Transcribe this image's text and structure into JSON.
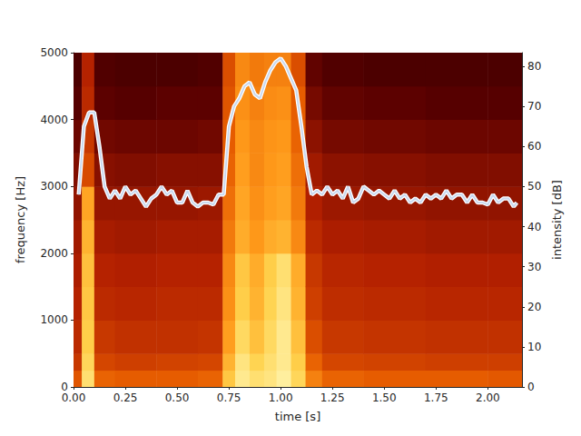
{
  "chart_data": {
    "type": "spectrogram",
    "xlabel": "time [s]",
    "ylabel": "frequency [Hz]",
    "y2label": "intensity [dB]",
    "xlim": [
      0,
      2.165
    ],
    "xticks": [
      {
        "value": 0,
        "label": "0.00"
      },
      {
        "value": 0.25,
        "label": "0.25"
      },
      {
        "value": 0.5,
        "label": "0.50"
      },
      {
        "value": 0.75,
        "label": "0.75"
      },
      {
        "value": 1,
        "label": "1.00"
      },
      {
        "value": 1.25,
        "label": "1.25"
      },
      {
        "value": 1.5,
        "label": "1.50"
      },
      {
        "value": 1.75,
        "label": "1.75"
      },
      {
        "value": 2,
        "label": "2.00"
      }
    ],
    "ylim": [
      0,
      5000
    ],
    "yticks": [
      0,
      1000,
      2000,
      3000,
      4000,
      5000
    ],
    "y2lim": [
      0,
      83.4
    ],
    "y2ticks": [
      0,
      10,
      20,
      30,
      40,
      50,
      60,
      70,
      80
    ],
    "grid": false,
    "spectrogram": {
      "time_edges": [
        0,
        0.04,
        0.1,
        0.2,
        0.4,
        0.6,
        0.72,
        0.78,
        0.85,
        0.92,
        0.98,
        1.05,
        1.12,
        1.2,
        1.4,
        1.7,
        2.0,
        2.165
      ],
      "freq_edges": [
        0,
        250,
        500,
        1000,
        1500,
        2000,
        2500,
        3000,
        3500,
        4000,
        4500,
        5000
      ],
      "cells": [
        [
          48,
          40,
          36,
          34,
          32,
          30,
          27,
          24,
          20,
          16,
          14
        ],
        [
          88,
          85,
          82,
          80,
          78,
          74,
          70,
          45,
          40,
          36,
          34
        ],
        [
          52,
          44,
          40,
          36,
          34,
          31,
          28,
          25,
          21,
          17,
          15
        ],
        [
          50,
          42,
          38,
          35,
          33,
          30,
          28,
          24,
          20,
          16,
          14
        ],
        [
          50,
          43,
          38,
          36,
          34,
          31,
          28,
          25,
          20,
          17,
          14
        ],
        [
          52,
          44,
          39,
          36,
          34,
          31,
          29,
          25,
          21,
          17,
          15
        ],
        [
          80,
          74,
          68,
          64,
          62,
          58,
          55,
          52,
          50,
          48,
          46
        ],
        [
          92,
          90,
          86,
          82,
          80,
          72,
          70,
          68,
          66,
          64,
          62
        ],
        [
          88,
          84,
          78,
          74,
          72,
          66,
          64,
          62,
          62,
          60,
          58
        ],
        [
          90,
          88,
          86,
          84,
          82,
          72,
          68,
          66,
          65,
          63,
          60
        ],
        [
          94,
          92,
          92,
          90,
          88,
          74,
          70,
          68,
          66,
          64,
          60
        ],
        [
          85,
          82,
          78,
          74,
          72,
          62,
          58,
          55,
          52,
          50,
          46
        ],
        [
          60,
          52,
          46,
          42,
          40,
          36,
          33,
          30,
          26,
          22,
          18
        ],
        [
          52,
          44,
          40,
          37,
          35,
          32,
          29,
          26,
          22,
          18,
          15
        ],
        [
          50,
          43,
          39,
          36,
          34,
          31,
          28,
          25,
          21,
          17,
          14
        ],
        [
          50,
          42,
          38,
          35,
          33,
          30,
          27,
          24,
          20,
          16,
          14
        ],
        [
          49,
          42,
          38,
          35,
          33,
          30,
          27,
          24,
          20,
          16,
          14
        ]
      ],
      "cell_range": [
        0,
        100
      ],
      "colors": [
        "#000000",
        "#5a0000",
        "#b32000",
        "#e65c00",
        "#ff9a1a",
        "#ffd24d",
        "#ffffcc"
      ]
    },
    "series": [
      {
        "type": "line",
        "axis": "y2",
        "color": "#c9d9f0",
        "x": [
          0.025,
          0.05,
          0.075,
          0.1,
          0.125,
          0.15,
          0.175,
          0.2,
          0.225,
          0.25,
          0.275,
          0.3,
          0.325,
          0.35,
          0.375,
          0.4,
          0.425,
          0.45,
          0.475,
          0.5,
          0.525,
          0.55,
          0.575,
          0.6,
          0.625,
          0.65,
          0.675,
          0.7,
          0.725,
          0.75,
          0.775,
          0.8,
          0.825,
          0.85,
          0.875,
          0.9,
          0.925,
          0.95,
          0.975,
          1.0,
          1.025,
          1.05,
          1.075,
          1.1,
          1.125,
          1.15,
          1.175,
          1.2,
          1.225,
          1.25,
          1.275,
          1.3,
          1.325,
          1.35,
          1.375,
          1.4,
          1.425,
          1.45,
          1.475,
          1.5,
          1.525,
          1.55,
          1.575,
          1.6,
          1.625,
          1.65,
          1.675,
          1.7,
          1.725,
          1.75,
          1.775,
          1.8,
          1.825,
          1.85,
          1.875,
          1.9,
          1.925,
          1.95,
          1.975,
          2.0,
          2.025,
          2.05,
          2.075,
          2.1,
          2.125,
          2.14
        ],
        "values": [
          48,
          65,
          68.5,
          68.5,
          60,
          50,
          47,
          49,
          47,
          50,
          48,
          49,
          47,
          45,
          47,
          48,
          50,
          48,
          49,
          46,
          46,
          49,
          46,
          45,
          46,
          46,
          45.5,
          48,
          48,
          65,
          70,
          72,
          75,
          76,
          73,
          72,
          76,
          79,
          81,
          82,
          80,
          77,
          74,
          65,
          55,
          48,
          49,
          48,
          50,
          48,
          49,
          47,
          50,
          46,
          47,
          50,
          49,
          48,
          49,
          48,
          47,
          49,
          47,
          48,
          46,
          47,
          46,
          48,
          47,
          48,
          47,
          49,
          47,
          48,
          48,
          46,
          48,
          46,
          46,
          45.5,
          48,
          46,
          47,
          47,
          45,
          46
        ]
      }
    ]
  }
}
